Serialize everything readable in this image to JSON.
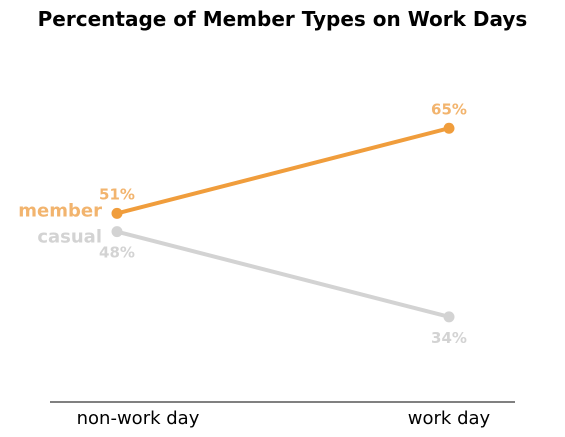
{
  "chart_data": {
    "type": "line",
    "title": "Percentage of Member Types on Work Days",
    "categories": [
      "non-work day",
      "work day"
    ],
    "ylim": [
      20,
      80
    ],
    "grid": false,
    "legend": "inline-left",
    "series": [
      {
        "name": "member",
        "values": [
          51,
          65
        ],
        "value_labels": [
          "51%",
          "65%"
        ],
        "color": "#F09D3C",
        "label_color": "#F2B46E",
        "label_position": "above"
      },
      {
        "name": "casual",
        "values": [
          48,
          34
        ],
        "value_labels": [
          "48%",
          "34%"
        ],
        "color": "#D3D3D3",
        "label_color": "#D3D3D3",
        "label_position": "below"
      }
    ]
  }
}
